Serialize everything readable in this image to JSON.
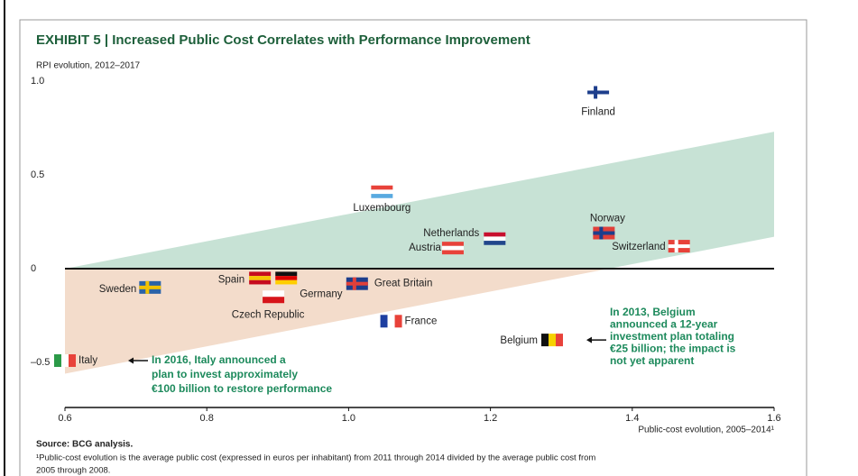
{
  "chart_data": {
    "type": "scatter",
    "title": "EXHIBIT 5 | Increased Public Cost Correlates with Performance Improvement",
    "y_label": "RPI evolution, 2012–2017",
    "x_label": "Public-cost evolution, 2005–2014¹",
    "labels": [
      "Finland",
      "Luxembourg",
      "Netherlands",
      "Austria",
      "Norway",
      "Switzerland",
      "Sweden",
      "Spain",
      "Germany",
      "Czech Republic",
      "Great Britain",
      "France",
      "Belgium",
      "Italy"
    ],
    "x": [
      1.352,
      1.047,
      1.206,
      1.147,
      1.36,
      1.466,
      0.72,
      0.875,
      0.912,
      0.894,
      1.012,
      1.06,
      1.287,
      0.6
    ],
    "values": [
      0.94,
      0.41,
      0.16,
      0.11,
      0.19,
      0.12,
      -0.1,
      -0.05,
      -0.05,
      -0.15,
      -0.08,
      -0.28,
      -0.38,
      -0.49
    ],
    "flags": [
      {
        "kind": "cross",
        "colors": [
          "#ffffff",
          "#1d3e8c"
        ]
      },
      {
        "kind": "h",
        "colors": [
          "#e8423a",
          "#ffffff",
          "#59a9e0"
        ]
      },
      {
        "kind": "h",
        "colors": [
          "#c8102e",
          "#ffffff",
          "#21468b"
        ]
      },
      {
        "kind": "h",
        "colors": [
          "#e8423a",
          "#ffffff",
          "#e8423a"
        ]
      },
      {
        "kind": "cross",
        "colors": [
          "#e0403a",
          "#1d3e8c"
        ]
      },
      {
        "kind": "cross",
        "colors": [
          "#e8423a",
          "#ffffff"
        ]
      },
      {
        "kind": "cross",
        "colors": [
          "#2a63a8",
          "#f2c200"
        ]
      },
      {
        "kind": "h",
        "colors": [
          "#c60b1e",
          "#f6c400",
          "#c60b1e"
        ]
      },
      {
        "kind": "h",
        "colors": [
          "#111111",
          "#dd0000",
          "#ffce00"
        ]
      },
      {
        "kind": "h",
        "colors": [
          "#ffffff",
          "#d7141a"
        ]
      },
      {
        "kind": "cross",
        "colors": [
          "#1d3e8c",
          "#e0403a"
        ]
      },
      {
        "kind": "v",
        "colors": [
          "#1d3ea0",
          "#ffffff",
          "#e8423a"
        ]
      },
      {
        "kind": "v",
        "colors": [
          "#111111",
          "#f6d100",
          "#e8423a"
        ]
      },
      {
        "kind": "v",
        "colors": [
          "#2b9a48",
          "#ffffff",
          "#e8423a"
        ]
      }
    ],
    "upper_line": {
      "x": [
        0.6,
        1.6
      ],
      "values": [
        0,
        0.73
      ]
    },
    "lower_line": {
      "x": [
        0.6,
        1.6
      ],
      "values": [
        -0.56,
        0.17
      ]
    },
    "above_color": "#c7e2d5",
    "below_color": "#f3dccb",
    "xlim": [
      0.6,
      1.6
    ],
    "ylim": [
      -0.74,
      1.0
    ],
    "xticks": [
      0.6,
      0.8,
      {
        "value": 1.0,
        "label": "1.0"
      },
      1.2,
      1.4,
      1.6
    ],
    "yticks": [
      {
        "value": 1.0,
        "label": "1.0"
      },
      0.5,
      0,
      {
        "value": -0.5,
        "label": "–0.5"
      }
    ],
    "annotations": [
      {
        "lines": [
          "In 2016, Italy announced a",
          "plan to invest approximately",
          "€100 billion to restore performance"
        ]
      },
      {
        "lines": [
          "In 2013, Belgium",
          "announced a 12-year",
          "investment plan totaling",
          "€25 billion; the impact is",
          "not yet apparent"
        ]
      }
    ],
    "source": "Source: BCG analysis.",
    "footnote": [
      "¹Public-cost evolution is the average public cost (expressed in euros per inhabitant) from 2011 through 2014 divided by the average public cost from",
      "2005 through 2008."
    ]
  }
}
